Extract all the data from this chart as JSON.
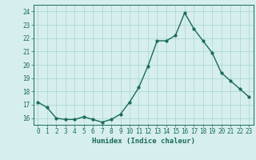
{
  "x": [
    0,
    1,
    2,
    3,
    4,
    5,
    6,
    7,
    8,
    9,
    10,
    11,
    12,
    13,
    14,
    15,
    16,
    17,
    18,
    19,
    20,
    21,
    22,
    23
  ],
  "y": [
    17.2,
    16.8,
    16.0,
    15.9,
    15.9,
    16.1,
    15.9,
    15.7,
    15.9,
    16.3,
    17.2,
    18.3,
    19.9,
    21.8,
    21.8,
    22.2,
    23.9,
    22.7,
    21.8,
    20.9,
    19.4,
    18.8,
    18.2,
    17.6
  ],
  "xlabel": "Humidex (Indice chaleur)",
  "ylabel": "",
  "ylim": [
    15.5,
    24.5
  ],
  "xlim": [
    -0.5,
    23.5
  ],
  "yticks": [
    16,
    17,
    18,
    19,
    20,
    21,
    22,
    23,
    24
  ],
  "xticks": [
    0,
    1,
    2,
    3,
    4,
    5,
    6,
    7,
    8,
    9,
    10,
    11,
    12,
    13,
    14,
    15,
    16,
    17,
    18,
    19,
    20,
    21,
    22,
    23
  ],
  "line_color": "#1a6b5a",
  "marker": "o",
  "marker_size": 2.0,
  "line_width": 1.0,
  "bg_color": "#d6eeee",
  "grid_color": "#a8d4d4",
  "label_fontsize": 6.5,
  "tick_fontsize": 5.5
}
